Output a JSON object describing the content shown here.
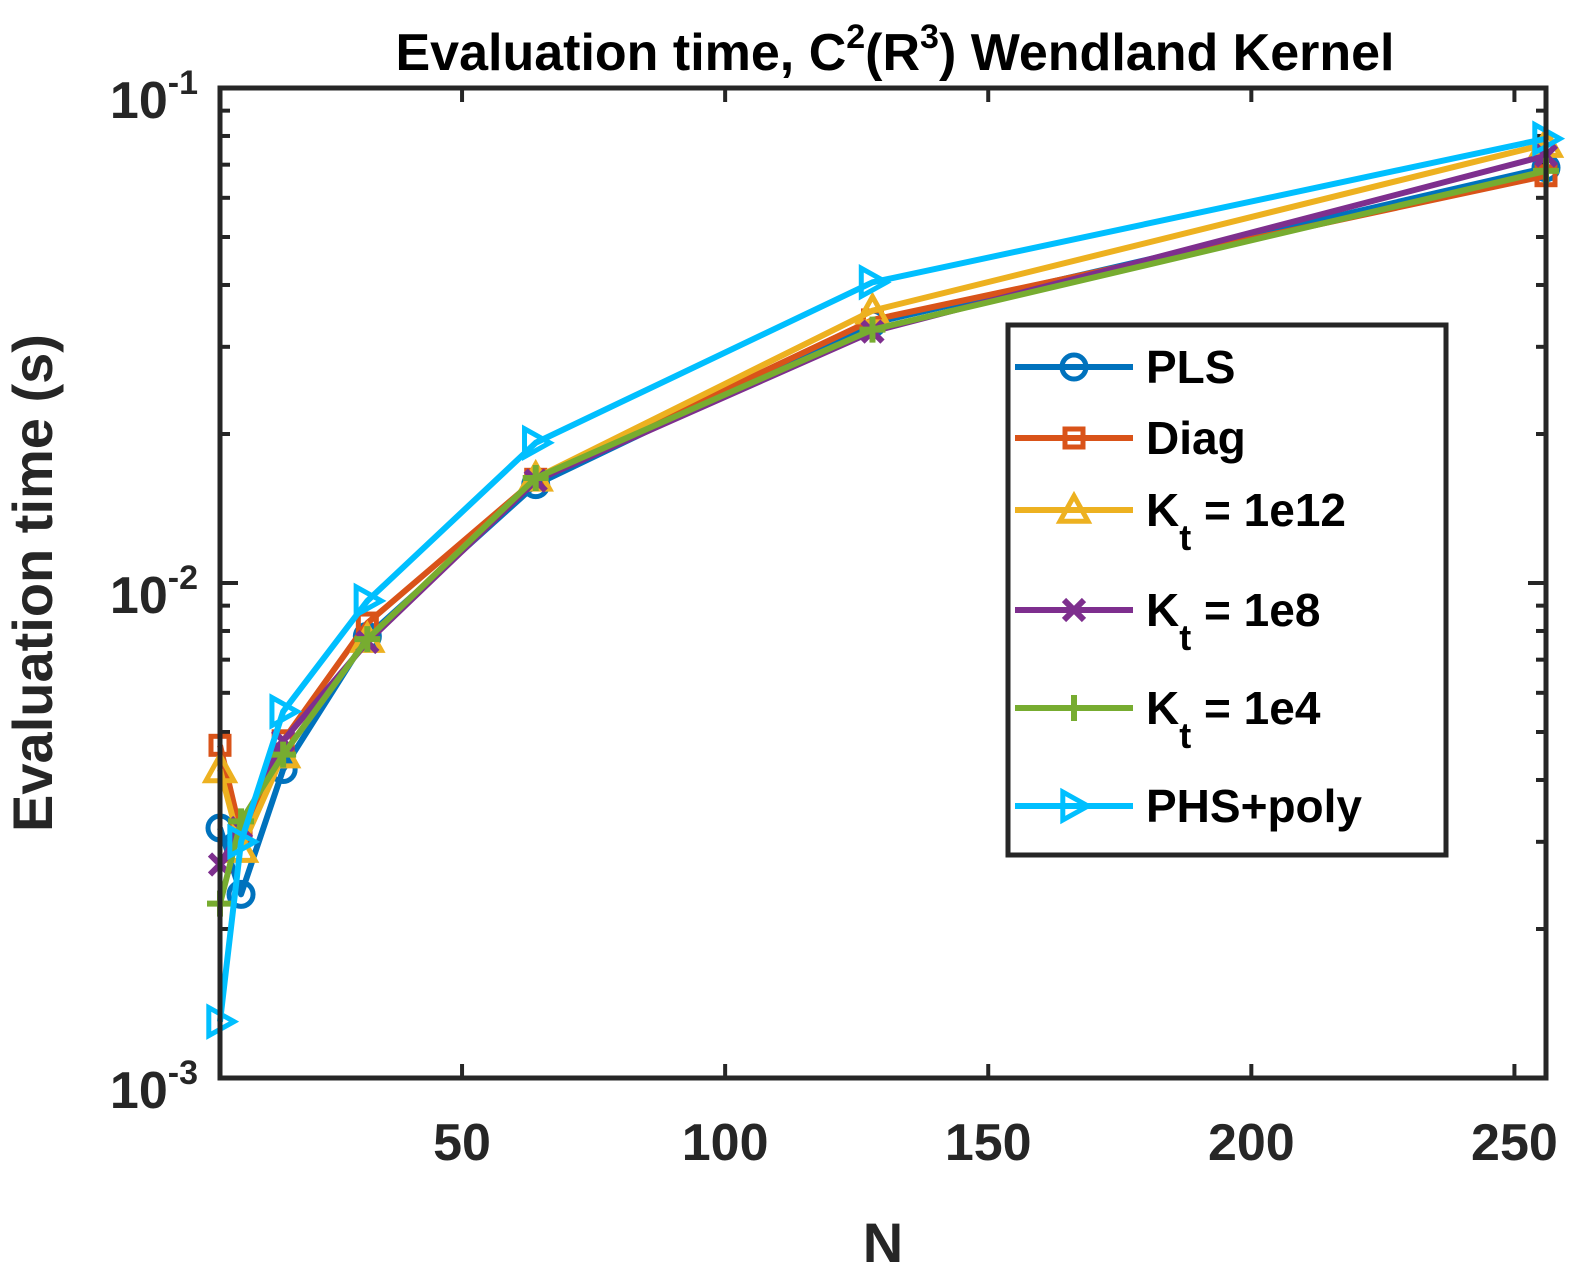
{
  "chart_data": {
    "type": "line",
    "title": {
      "prefix": "Evaluation time, C",
      "sup1": "2",
      "mid": "(R",
      "sup2": "3",
      "suffix": ") Wendland Kernel"
    },
    "xlabel": "N",
    "ylabel": "Evaluation time (s)",
    "xlim": [
      4,
      256
    ],
    "ylim": [
      0.001,
      0.1
    ],
    "yscale": "log",
    "xticks": [
      50,
      100,
      150,
      200,
      250
    ],
    "yticks": [
      {
        "value": 0.001,
        "base": "10",
        "exp": "-3"
      },
      {
        "value": 0.01,
        "base": "10",
        "exp": "-2"
      },
      {
        "value": 0.1,
        "base": "10",
        "exp": "-1"
      }
    ],
    "x": [
      4,
      8,
      16,
      32,
      64,
      128,
      256
    ],
    "legend_position": "right",
    "series": [
      {
        "name": "PLS",
        "name_main": "PLS",
        "name_sub": "",
        "name_rest": "",
        "color": "#0072BD",
        "marker": "circle",
        "values": [
          0.0032,
          0.00235,
          0.0042,
          0.0078,
          0.0158,
          0.0335,
          0.069
        ]
      },
      {
        "name": "Diag",
        "name_main": "Diag",
        "name_sub": "",
        "name_rest": "",
        "color": "#D95319",
        "marker": "square",
        "values": [
          0.0047,
          0.0031,
          0.0048,
          0.0083,
          0.0162,
          0.034,
          0.0665
        ]
      },
      {
        "name": "K_t = 1e12",
        "name_main": "K",
        "name_sub": "t",
        "name_rest": " = 1e12",
        "color": "#EDB120",
        "marker": "triangle-up",
        "values": [
          0.0042,
          0.0029,
          0.0045,
          0.0077,
          0.0163,
          0.0355,
          0.077
        ]
      },
      {
        "name": "K_t = 1e8",
        "name_main": "K",
        "name_sub": "t",
        "name_rest": " = 1e8",
        "color": "#7E2F8E",
        "marker": "x",
        "values": [
          0.0027,
          0.0032,
          0.0048,
          0.0076,
          0.0161,
          0.0322,
          0.073
        ]
      },
      {
        "name": "K_t = 1e4",
        "name_main": "K",
        "name_sub": "t",
        "name_rest": " = 1e4",
        "color": "#77AC30",
        "marker": "plus",
        "values": [
          0.00225,
          0.0033,
          0.0045,
          0.0077,
          0.0163,
          0.0325,
          0.068
        ]
      },
      {
        "name": "PHS+poly",
        "name_main": "PHS+poly",
        "name_sub": "",
        "name_rest": "",
        "color": "#00BFFF",
        "marker": "triangle-right",
        "values": [
          0.0013,
          0.003,
          0.0055,
          0.0092,
          0.0192,
          0.0405,
          0.079
        ]
      }
    ]
  }
}
